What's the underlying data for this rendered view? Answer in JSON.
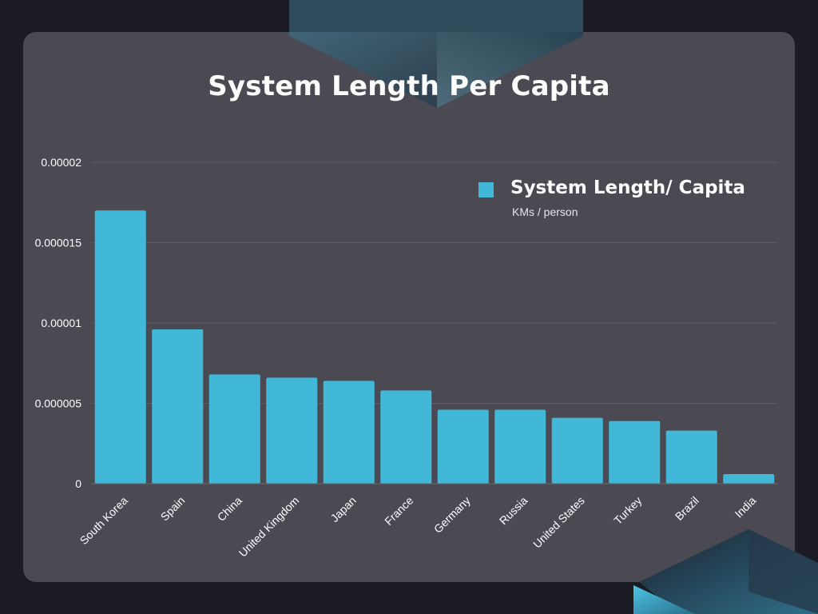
{
  "colors": {
    "background": "#1b1b24",
    "card": "#4b4a52",
    "bar": "#42b8d9",
    "text": "#ffffff",
    "gridline": "#5c5b63"
  },
  "chart_data": {
    "type": "bar",
    "title": "System Length Per Capita",
    "xlabel": "",
    "ylabel": "",
    "categories": [
      "South Korea",
      "Spain",
      "China",
      "United Kingdom",
      "Japan",
      "France",
      "Germany",
      "Russia",
      "United States",
      "Turkey",
      "Brazil",
      "India"
    ],
    "series": [
      {
        "name": "System Length/ Capita",
        "unit": "KMs / person",
        "values": [
          1.7e-05,
          9.6e-06,
          6.8e-06,
          6.6e-06,
          6.4e-06,
          5.8e-06,
          4.6e-06,
          4.6e-06,
          4.1e-06,
          3.9e-06,
          3.3e-06,
          6e-07
        ]
      }
    ],
    "ylim": [
      0,
      2e-05
    ],
    "yticks": [
      {
        "value": 0,
        "label": "0"
      },
      {
        "value": 5e-06,
        "label": "0.000005"
      },
      {
        "value": 1e-05,
        "label": "0.00001"
      },
      {
        "value": 1.5e-05,
        "label": "0.000015"
      },
      {
        "value": 2e-05,
        "label": "0.00002"
      }
    ],
    "grid": true,
    "legend_position": "top-right"
  }
}
